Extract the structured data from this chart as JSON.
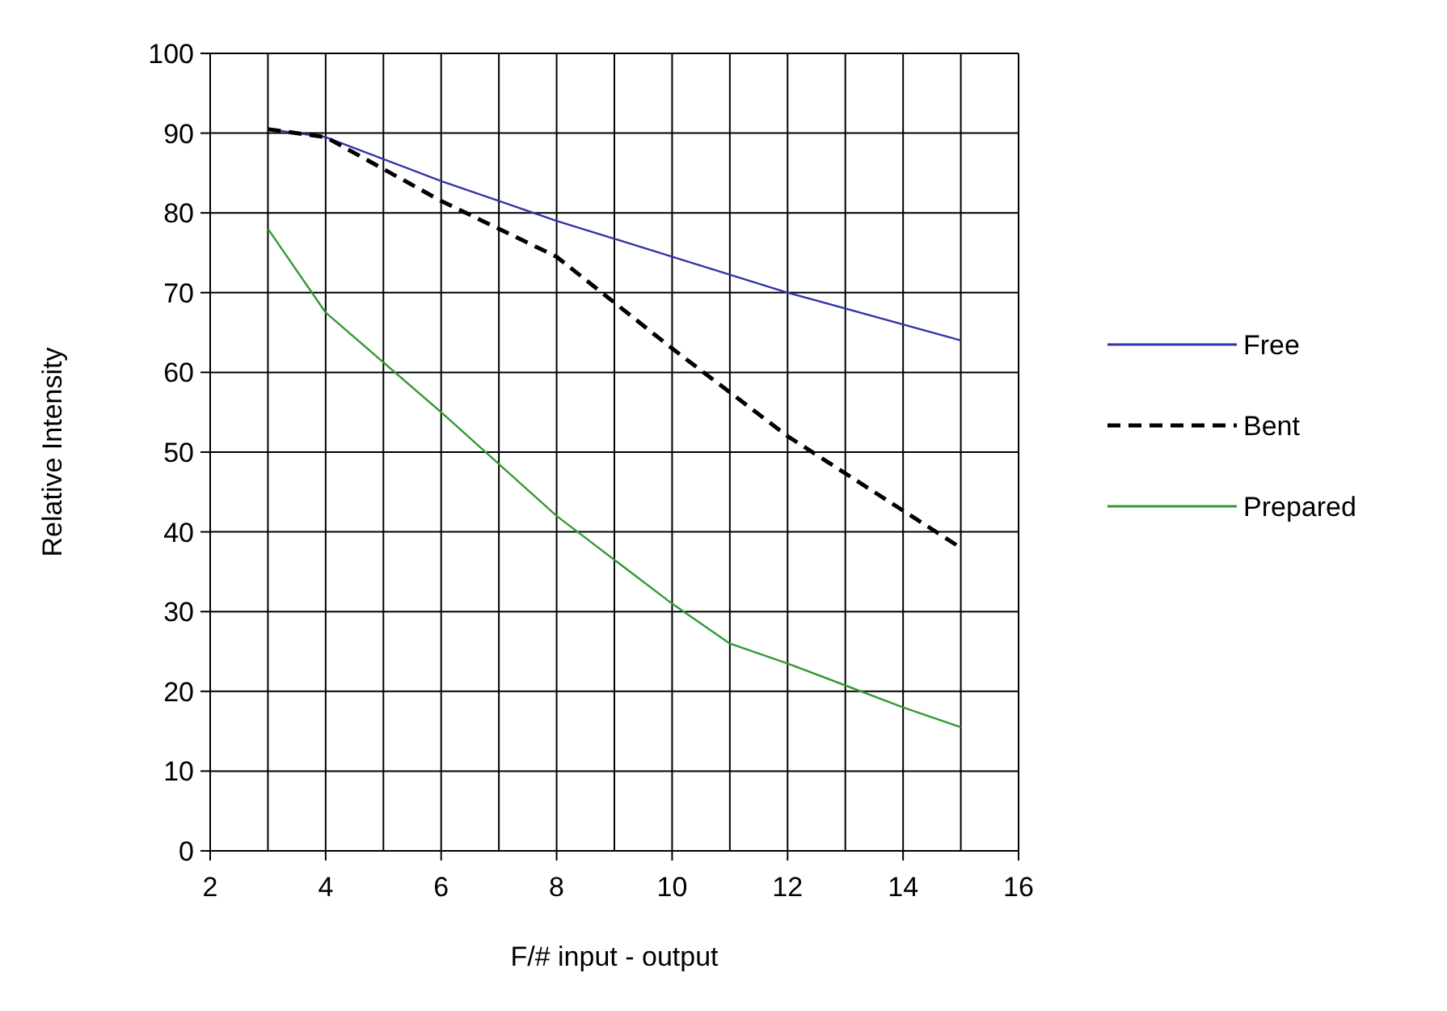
{
  "chart_data": {
    "type": "line",
    "xlabel": "F/# input - output",
    "ylabel": "Relative Intensity",
    "xlim": [
      2,
      16
    ],
    "xticks": [
      2,
      {
        "value": 3,
        "label": null
      },
      4,
      {
        "value": 5,
        "label": null
      },
      6,
      {
        "value": 7,
        "label": null
      },
      8,
      {
        "value": 9,
        "label": null
      },
      10,
      {
        "value": 11,
        "label": null
      },
      12,
      {
        "value": 13,
        "label": null
      },
      14,
      {
        "value": 15,
        "label": null
      },
      16
    ],
    "ylim": [
      0,
      100
    ],
    "yticks": [
      0,
      10,
      20,
      30,
      40,
      50,
      60,
      70,
      80,
      90,
      100
    ],
    "grid": true,
    "legend": "right",
    "marker": "none",
    "series": [
      {
        "name": "Free",
        "color": "#3333aa",
        "line_style": "solid",
        "x": [
          3,
          4,
          6,
          8,
          10,
          12,
          15
        ],
        "values": [
          90.5,
          89.5,
          84,
          79,
          74.5,
          70,
          64
        ]
      },
      {
        "name": "Bent",
        "color": "#000000",
        "line_style": "dashed",
        "x": [
          3,
          4,
          6,
          8,
          10,
          12,
          15
        ],
        "values": [
          90.5,
          89.5,
          81.5,
          74.5,
          63,
          52,
          38
        ]
      },
      {
        "name": "Prepared",
        "color": "#339933",
        "line_style": "solid",
        "x": [
          3,
          4,
          6,
          8,
          10,
          11,
          12,
          14,
          15
        ],
        "values": [
          78,
          67.5,
          55,
          42,
          31,
          26,
          23.5,
          18,
          15.5
        ]
      }
    ]
  }
}
